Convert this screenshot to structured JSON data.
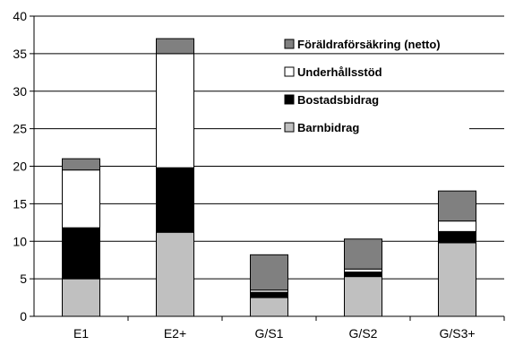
{
  "chart_data": {
    "type": "bar",
    "stacked": true,
    "categories": [
      "E1",
      "E2+",
      "G/S1",
      "G/S2",
      "G/S3+"
    ],
    "series": [
      {
        "name": "Barnbidrag",
        "color": "#c0c0c0",
        "values": [
          5.0,
          11.2,
          2.5,
          5.3,
          9.8
        ]
      },
      {
        "name": "Bostadsbidrag",
        "color": "#000000",
        "values": [
          6.8,
          8.6,
          0.7,
          0.6,
          1.5
        ]
      },
      {
        "name": "Underhållsstöd",
        "color": "#ffffff",
        "values": [
          7.7,
          15.2,
          0.3,
          0.4,
          1.4
        ]
      },
      {
        "name": "Föräldraförsäkring (netto)",
        "color": "#808080",
        "values": [
          1.5,
          2.0,
          4.7,
          4.0,
          4.0
        ]
      }
    ],
    "legend_order": [
      "Föräldraförsäkring (netto)",
      "Underhållsstöd",
      "Bostadsbidrag",
      "Barnbidrag"
    ],
    "ylim": [
      0,
      40
    ],
    "yticks": [
      "0",
      "5",
      "10",
      "15",
      "20",
      "25",
      "30",
      "35",
      "40"
    ],
    "grid": true,
    "legend_position": "top-right"
  }
}
